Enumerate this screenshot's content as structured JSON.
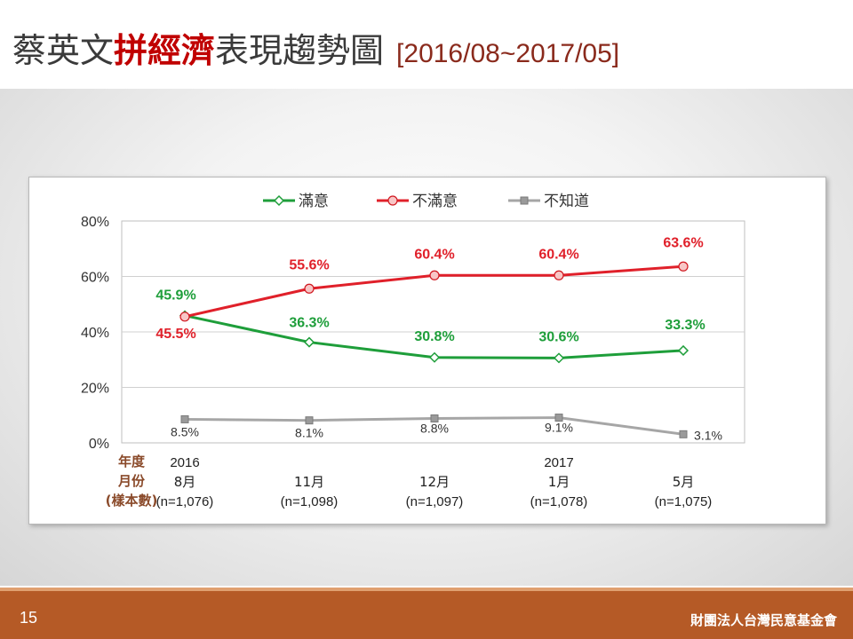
{
  "slide": {
    "title_part1": "蔡英文",
    "title_highlight": "拼經濟",
    "title_part2": "表現趨勢圖",
    "date_range": "[2016/08~2017/05]",
    "page_number": "15",
    "organization": "財團法人台灣民意基金會"
  },
  "colors": {
    "satisfied": "#1e9e3a",
    "dissatisfied": "#e0202a",
    "unknown": "#a6a6a6",
    "title_highlight": "#c00000",
    "footer": "#b55a26",
    "row_labels": "#8a4a2a"
  },
  "chart_data": {
    "type": "line",
    "title": "",
    "ylim": [
      0,
      80
    ],
    "yticks": [
      "0%",
      "20%",
      "40%",
      "60%",
      "80%"
    ],
    "grid": true,
    "legend_position": "top",
    "row_labels": [
      "年度",
      "月份",
      "(樣本數)"
    ],
    "categories": [
      {
        "year": "2016",
        "month": "8月",
        "n": "(n=1,076)"
      },
      {
        "year": "",
        "month": "11月",
        "n": "(n=1,098)"
      },
      {
        "year": "",
        "month": "12月",
        "n": "(n=1,097)"
      },
      {
        "year": "2017",
        "month": "1月",
        "n": "(n=1,078)"
      },
      {
        "year": "",
        "month": "5月",
        "n": "(n=1,075)"
      }
    ],
    "series": [
      {
        "name": "滿意",
        "color": "#1e9e3a",
        "marker": "diamond",
        "values": [
          45.9,
          36.3,
          30.8,
          30.6,
          33.3
        ],
        "labels": [
          "45.9%",
          "36.3%",
          "30.8%",
          "30.6%",
          "33.3%"
        ]
      },
      {
        "name": "不滿意",
        "color": "#e0202a",
        "marker": "circle",
        "values": [
          45.5,
          55.6,
          60.4,
          60.4,
          63.6
        ],
        "labels": [
          "45.5%",
          "55.6%",
          "60.4%",
          "60.4%",
          "63.6%"
        ]
      },
      {
        "name": "不知道",
        "color": "#a6a6a6",
        "marker": "square-x",
        "values": [
          8.5,
          8.1,
          8.8,
          9.1,
          3.1
        ],
        "labels": [
          "8.5%",
          "8.1%",
          "8.8%",
          "9.1%",
          "3.1%"
        ]
      }
    ]
  }
}
